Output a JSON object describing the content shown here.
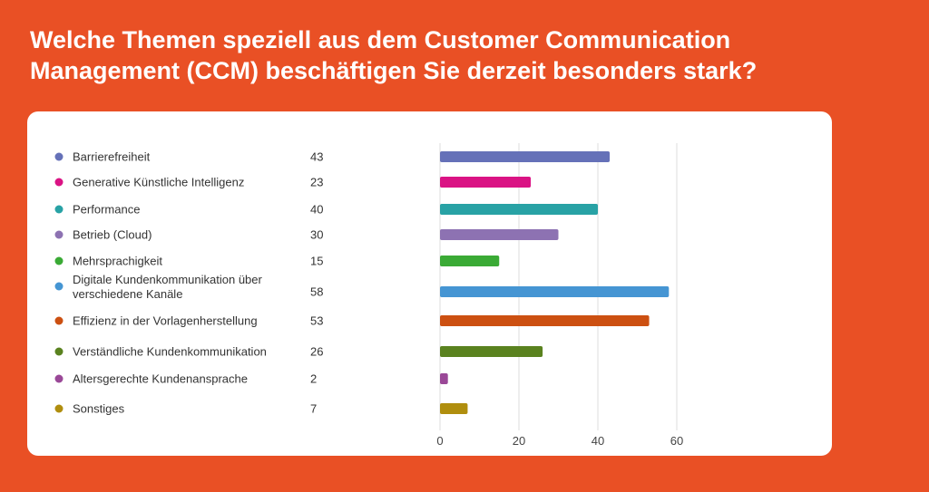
{
  "title": "Welche Themen speziell aus dem Customer Communication Management (CCM) beschäftigen Sie derzeit besonders stark?",
  "chart_data": {
    "type": "bar",
    "orientation": "horizontal",
    "categories": [
      "Barrierefreiheit",
      "Generative Künstliche Intelligenz",
      "Performance",
      "Betrieb (Cloud)",
      "Mehrsprachigkeit",
      "Digitale Kundenkommunikation über verschiedene Kanäle",
      "Effizienz in der Vorlagenherstellung",
      "Verständliche Kundenkommunikation",
      "Altersgerechte Kundenansprache",
      "Sonstiges"
    ],
    "values": [
      43,
      23,
      40,
      30,
      15,
      58,
      53,
      26,
      2,
      7
    ],
    "colors": [
      "#6571B8",
      "#DA1384",
      "#28A2A5",
      "#8D72B2",
      "#3AAA35",
      "#4595D3",
      "#CC5011",
      "#5A821F",
      "#9A4897",
      "#B08E0E"
    ],
    "xlim": [
      0,
      60
    ],
    "xticks": [
      "0",
      "20",
      "40",
      "60"
    ],
    "grid": true,
    "legend": "left, with values"
  }
}
